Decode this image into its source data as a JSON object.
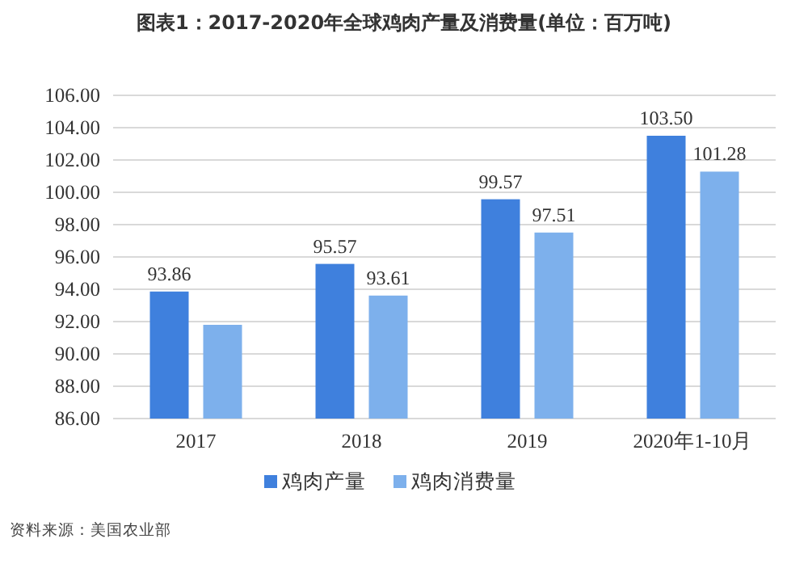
{
  "chart_data": {
    "type": "bar",
    "title": "图表1：2017-2020年全球鸡肉产量及消费量(单位：百万吨)",
    "categories": [
      "2017",
      "2018",
      "2019",
      "2020年1-10月"
    ],
    "series": [
      {
        "name": "鸡肉产量",
        "color": "#3f80dd",
        "values": [
          93.86,
          95.57,
          99.57,
          103.5
        ],
        "value_labels": [
          "93.86",
          "95.57",
          "99.57",
          "103.50"
        ]
      },
      {
        "name": "鸡肉消费量",
        "color": "#7db0ec",
        "values": [
          91.8,
          93.61,
          97.51,
          101.28
        ],
        "value_labels": [
          null,
          "93.61",
          "97.51",
          "101.28"
        ]
      }
    ],
    "ylim": [
      86,
      106
    ],
    "yticks": [
      {
        "value": 86,
        "label": "86.00"
      },
      {
        "value": 88,
        "label": "88.00"
      },
      {
        "value": 90,
        "label": "90.00"
      },
      {
        "value": 92,
        "label": "92.00"
      },
      {
        "value": 94,
        "label": "94.00"
      },
      {
        "value": 96,
        "label": "96.00"
      },
      {
        "value": 98,
        "label": "98.00"
      },
      {
        "value": 100,
        "label": "100.00"
      },
      {
        "value": 102,
        "label": "102.00"
      },
      {
        "value": 104,
        "label": "104.00"
      },
      {
        "value": 106,
        "label": "106.00"
      }
    ],
    "grid": "y",
    "legend": "bottom",
    "annotations": [
      "资料来源：美国农业部"
    ]
  }
}
